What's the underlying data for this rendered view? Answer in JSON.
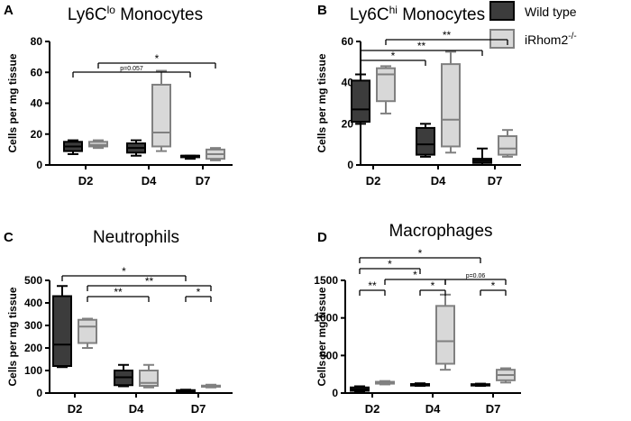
{
  "colors": {
    "wild_type_fill": "#3c3c3c",
    "knockout_fill": "#d8d8d8",
    "wt_stroke": "#000000",
    "ko_stroke": "#808080"
  },
  "legend": {
    "items": [
      {
        "label": "Wild type",
        "color": "#3c3c3c"
      },
      {
        "label": "iRhom2",
        "sup": "-/-",
        "color": "#d8d8d8"
      }
    ]
  },
  "chart_data": [
    {
      "type": "box",
      "letter": "A",
      "title": {
        "pre": "Ly6C",
        "sup": "lo",
        "post": " Monocytes"
      },
      "ylabel": "Cells per mg tissue",
      "ylim": [
        0,
        80
      ],
      "yticks": [
        0,
        20,
        40,
        60,
        80
      ],
      "categories": [
        "D2",
        "D4",
        "D7"
      ],
      "series": [
        {
          "name": "Wild type",
          "boxes": [
            {
              "min": 7,
              "q1": 9,
              "median": 12,
              "q3": 15,
              "max": 16
            },
            {
              "min": 6,
              "q1": 8,
              "median": 11,
              "q3": 14,
              "max": 16
            },
            {
              "min": 4,
              "q1": 5,
              "median": 6,
              "q3": 6,
              "max": 6
            }
          ]
        },
        {
          "name": "iRhom2-/-",
          "boxes": [
            {
              "min": 11,
              "q1": 12,
              "median": 13,
              "q3": 15,
              "max": 16
            },
            {
              "min": 9,
              "q1": 12,
              "median": 21,
              "q3": 52,
              "max": 61
            },
            {
              "min": 3,
              "q1": 4,
              "median": 7,
              "q3": 10,
              "max": 11
            }
          ]
        }
      ],
      "significance": [
        {
          "from": "D2-WT",
          "to": "D7-WT",
          "label": "p=0.057"
        },
        {
          "from": "D2-KO",
          "to": "D7-KO",
          "label": "*"
        }
      ]
    },
    {
      "type": "box",
      "letter": "B",
      "title": {
        "pre": "Ly6C",
        "sup": "hi",
        "post": " Monocytes"
      },
      "ylabel": "Cells per mg tissue",
      "ylim": [
        0,
        60
      ],
      "yticks": [
        0,
        20,
        40,
        60
      ],
      "categories": [
        "D2",
        "D4",
        "D7"
      ],
      "series": [
        {
          "name": "Wild type",
          "boxes": [
            {
              "min": 20,
              "q1": 21,
              "median": 27,
              "q3": 41,
              "max": 44
            },
            {
              "min": 4,
              "q1": 5,
              "median": 10,
              "q3": 18,
              "max": 20
            },
            {
              "min": 0,
              "q1": 1,
              "median": 2,
              "q3": 3,
              "max": 8
            }
          ]
        },
        {
          "name": "iRhom2-/-",
          "boxes": [
            {
              "min": 25,
              "q1": 31,
              "median": 44,
              "q3": 47,
              "max": 48
            },
            {
              "min": 6,
              "q1": 9,
              "median": 22,
              "q3": 49,
              "max": 55
            },
            {
              "min": 4,
              "q1": 5,
              "median": 8,
              "q3": 14,
              "max": 17
            }
          ]
        }
      ],
      "significance": [
        {
          "from": "D2-WT",
          "to": "D4-WT",
          "label": "*"
        },
        {
          "from": "D2-WT",
          "to": "D7-WT",
          "label": "**"
        },
        {
          "from": "D2-KO",
          "to": "D7-KO",
          "label": "**"
        }
      ]
    },
    {
      "type": "box",
      "letter": "C",
      "title": {
        "pre": "Neutrophils",
        "sup": "",
        "post": ""
      },
      "ylabel": "Cells per mg tissue",
      "ylim": [
        0,
        500
      ],
      "yticks": [
        0,
        100,
        200,
        300,
        400,
        500
      ],
      "categories": [
        "D2",
        "D4",
        "D7"
      ],
      "series": [
        {
          "name": "Wild type",
          "boxes": [
            {
              "min": 115,
              "q1": 120,
              "median": 215,
              "q3": 430,
              "max": 475
            },
            {
              "min": 30,
              "q1": 35,
              "median": 70,
              "q3": 100,
              "max": 125
            },
            {
              "min": 5,
              "q1": 8,
              "median": 10,
              "q3": 13,
              "max": 15
            }
          ]
        },
        {
          "name": "iRhom2-/-",
          "boxes": [
            {
              "min": 200,
              "q1": 222,
              "median": 295,
              "q3": 325,
              "max": 330
            },
            {
              "min": 25,
              "q1": 32,
              "median": 45,
              "q3": 100,
              "max": 125
            },
            {
              "min": 25,
              "q1": 28,
              "median": 30,
              "q3": 33,
              "max": 37
            }
          ]
        }
      ],
      "significance": [
        {
          "from": "D2-WT",
          "to": "D7-WT",
          "label": "*"
        },
        {
          "from": "D2-KO",
          "to": "D7-KO",
          "label": "**"
        },
        {
          "from": "D2-KO",
          "to": "D4-KO",
          "label": "**"
        },
        {
          "from": "D7-WT",
          "to": "D7-KO",
          "label": "*"
        }
      ]
    },
    {
      "type": "box",
      "letter": "D",
      "title": {
        "pre": "Macrophages",
        "sup": "",
        "post": ""
      },
      "ylabel": "Cells per mg tissue",
      "ylim": [
        0,
        1500
      ],
      "yticks": [
        0,
        500,
        1000,
        1500
      ],
      "categories": [
        "D2",
        "D4",
        "D7"
      ],
      "series": [
        {
          "name": "Wild type",
          "boxes": [
            {
              "min": 20,
              "q1": 30,
              "median": 50,
              "q3": 75,
              "max": 90
            },
            {
              "min": 95,
              "q1": 100,
              "median": 110,
              "q3": 120,
              "max": 130
            },
            {
              "min": 95,
              "q1": 100,
              "median": 110,
              "q3": 118,
              "max": 125
            }
          ]
        },
        {
          "name": "iRhom2-/-",
          "boxes": [
            {
              "min": 115,
              "q1": 125,
              "median": 140,
              "q3": 150,
              "max": 160
            },
            {
              "min": 310,
              "q1": 390,
              "median": 690,
              "q3": 1160,
              "max": 1310
            },
            {
              "min": 140,
              "q1": 170,
              "median": 240,
              "q3": 310,
              "max": 330
            }
          ]
        }
      ],
      "significance": [
        {
          "from": "D2-WT",
          "to": "D7-WT",
          "label": "*"
        },
        {
          "from": "D2-WT",
          "to": "D4-WT",
          "label": "*"
        },
        {
          "from": "D2-KO",
          "to": "D4-KO",
          "label": "*"
        },
        {
          "from": "D4-KO",
          "to": "D7-KO",
          "label": "p=0.06"
        },
        {
          "from": "D2-WT",
          "to": "D2-KO",
          "label": "**"
        },
        {
          "from": "D4-WT",
          "to": "D4-KO",
          "label": "*"
        },
        {
          "from": "D7-WT",
          "to": "D7-KO",
          "label": "*"
        }
      ]
    }
  ]
}
